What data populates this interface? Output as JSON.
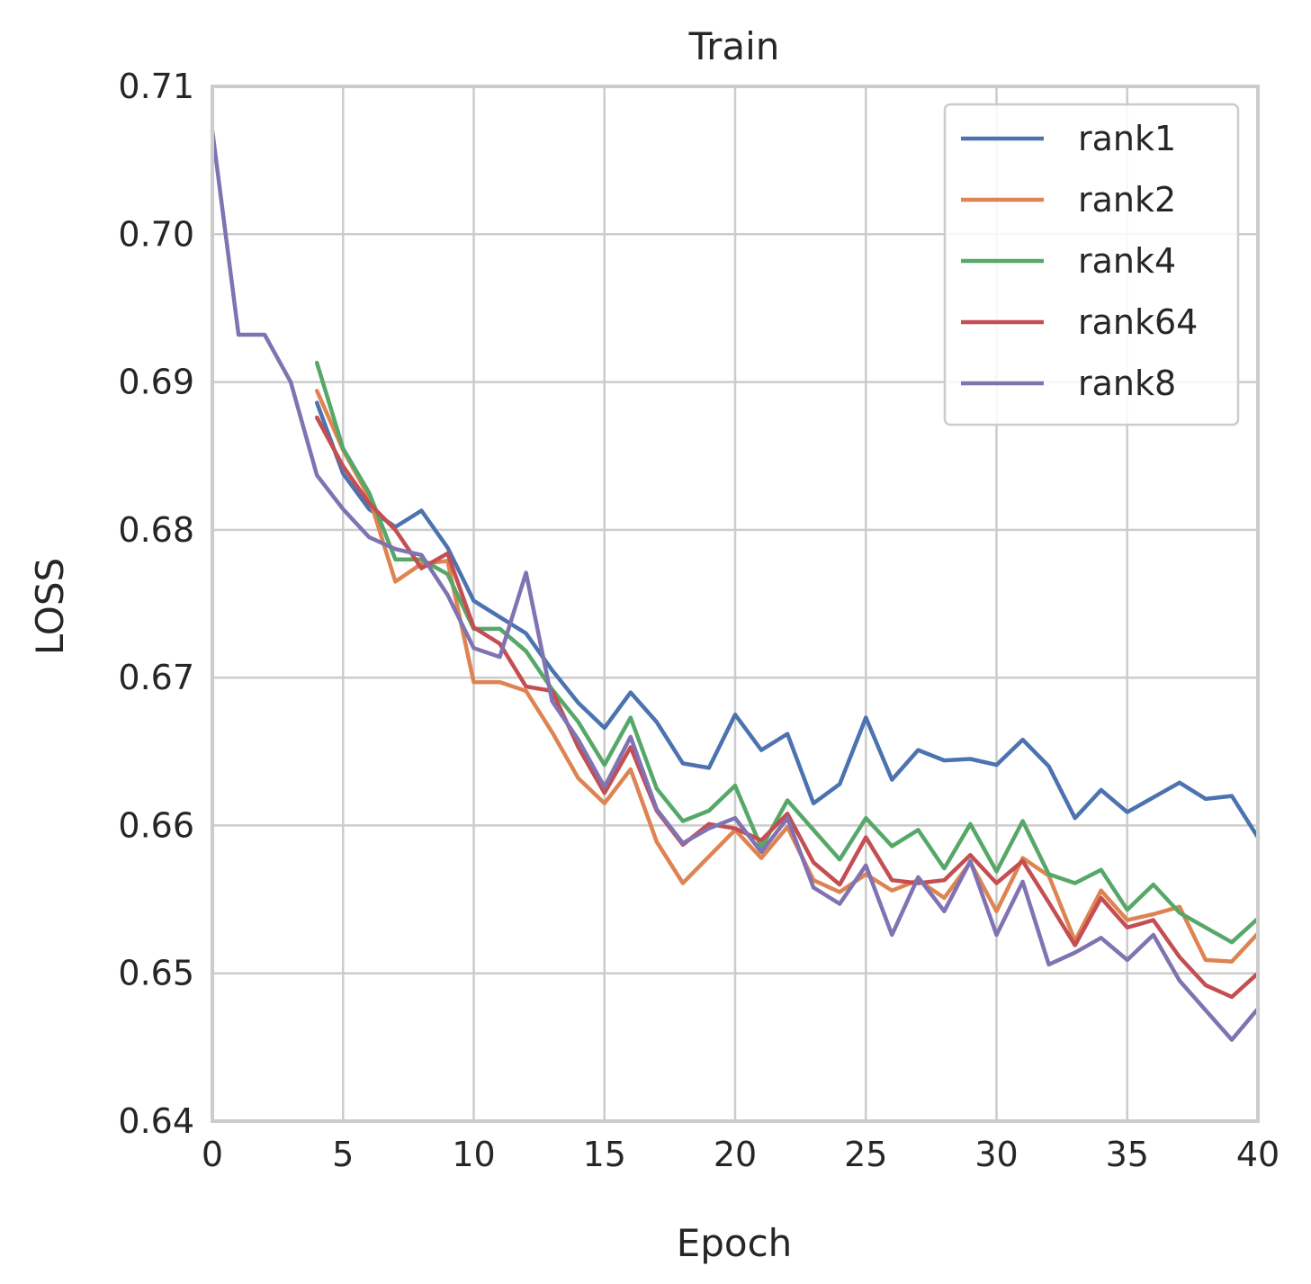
{
  "chart_data": {
    "type": "line",
    "title": "Train",
    "xlabel": "Epoch",
    "ylabel": "LOSS",
    "xlim": [
      0,
      40
    ],
    "ylim": [
      0.64,
      0.71
    ],
    "x_ticks": [
      0,
      5,
      10,
      15,
      20,
      25,
      30,
      35,
      40
    ],
    "y_ticks": [
      0.64,
      0.65,
      0.66,
      0.67,
      0.68,
      0.69,
      0.7,
      0.71
    ],
    "x_tick_labels": [
      "0",
      "5",
      "10",
      "15",
      "20",
      "25",
      "30",
      "35",
      "40"
    ],
    "y_tick_labels": [
      "0.64",
      "0.65",
      "0.66",
      "0.67",
      "0.68",
      "0.69",
      "0.70",
      "0.71"
    ],
    "grid": true,
    "legend_position": "top-right",
    "series": [
      {
        "name": "rank1",
        "color": "#4c72b0",
        "x_start": 4,
        "values": [
          0.6886,
          0.6838,
          0.6814,
          0.6802,
          0.6813,
          0.6788,
          0.6752,
          0.6741,
          0.673,
          0.6705,
          0.6683,
          0.6666,
          0.669,
          0.667,
          0.6642,
          0.6639,
          0.6675,
          0.6651,
          0.6662,
          0.6615,
          0.6628,
          0.6673,
          0.6631,
          0.6651,
          0.6644,
          0.6645,
          0.6641,
          0.6658,
          0.664,
          0.6605,
          0.6624,
          0.6609,
          0.6619,
          0.6629,
          0.6618,
          0.662,
          0.6592
        ]
      },
      {
        "name": "rank2",
        "color": "#dd8452",
        "x_start": 4,
        "values": [
          0.6894,
          0.6854,
          0.6822,
          0.6765,
          0.6777,
          0.6779,
          0.6697,
          0.6697,
          0.6691,
          0.6663,
          0.6632,
          0.6615,
          0.6638,
          0.6589,
          0.6561,
          0.6579,
          0.6597,
          0.6578,
          0.6599,
          0.6563,
          0.6555,
          0.6567,
          0.6556,
          0.6563,
          0.6551,
          0.6575,
          0.6542,
          0.6578,
          0.6566,
          0.6522,
          0.6556,
          0.6536,
          0.654,
          0.6545,
          0.6509,
          0.6508,
          0.6527
        ]
      },
      {
        "name": "rank4",
        "color": "#55a868",
        "x_start": 4,
        "values": [
          0.6913,
          0.6855,
          0.6825,
          0.678,
          0.678,
          0.677,
          0.6733,
          0.6733,
          0.6718,
          0.6692,
          0.667,
          0.6641,
          0.6673,
          0.6625,
          0.6603,
          0.661,
          0.6627,
          0.6585,
          0.6617,
          0.6597,
          0.6577,
          0.6605,
          0.6586,
          0.6597,
          0.6571,
          0.6601,
          0.6569,
          0.6603,
          0.6567,
          0.6561,
          0.657,
          0.6543,
          0.656,
          0.6541,
          0.6531,
          0.6521,
          0.6537
        ]
      },
      {
        "name": "rank64",
        "color": "#c44e52",
        "x_start": 4,
        "values": [
          0.6876,
          0.6843,
          0.6818,
          0.68,
          0.6774,
          0.6784,
          0.6734,
          0.6723,
          0.6694,
          0.6691,
          0.6653,
          0.6622,
          0.6653,
          0.661,
          0.6587,
          0.6601,
          0.6598,
          0.659,
          0.6608,
          0.6575,
          0.656,
          0.6592,
          0.6563,
          0.6561,
          0.6563,
          0.658,
          0.6561,
          0.6576,
          0.6548,
          0.6519,
          0.6551,
          0.6531,
          0.6536,
          0.6511,
          0.6492,
          0.6484,
          0.65
        ]
      },
      {
        "name": "rank8",
        "color": "#8172b2",
        "x_start": 0,
        "values": [
          0.707,
          0.6932,
          0.6932,
          0.69,
          0.6837,
          0.6814,
          0.6795,
          0.6787,
          0.6783,
          0.6756,
          0.672,
          0.6714,
          0.6771,
          0.6684,
          0.6658,
          0.6626,
          0.666,
          0.6611,
          0.6588,
          0.6598,
          0.6605,
          0.6582,
          0.6605,
          0.6558,
          0.6547,
          0.6573,
          0.6526,
          0.6565,
          0.6542,
          0.6576,
          0.6526,
          0.6562,
          0.6506,
          0.6514,
          0.6524,
          0.6509,
          0.6526,
          0.6495,
          0.6475,
          0.6455,
          0.6476
        ]
      }
    ]
  }
}
